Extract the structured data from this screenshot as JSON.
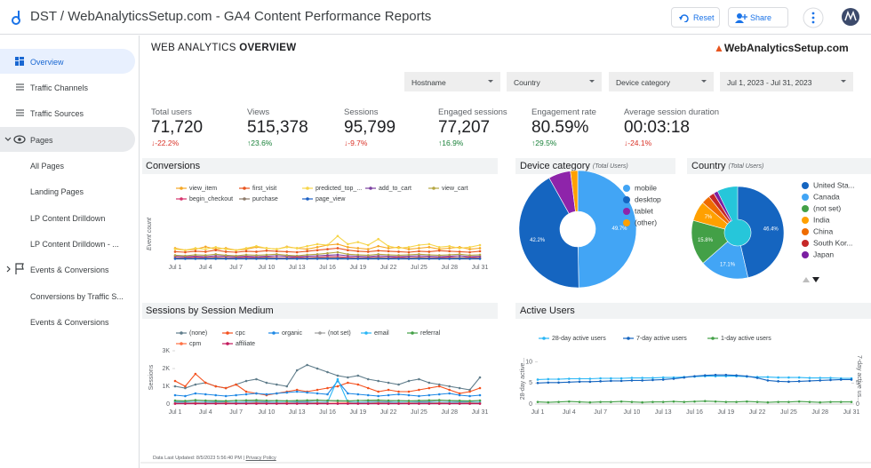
{
  "header": {
    "title": "DST / WebAnalyticsSetup.com - GA4 Content Performance Reports",
    "buttons": [
      "Reset",
      "Share"
    ]
  },
  "sidebar": {
    "items": [
      "Overview",
      "Traffic Channels",
      "Traffic Sources",
      "Pages",
      "All Pages",
      "Landing Pages",
      "LP Content Drilldown",
      "LP Content Drilldown - ...",
      "Events & Conversions",
      "Conversions by Traffic S...",
      "Events & Conversions"
    ]
  },
  "report": {
    "title_light": "WEB ANALYTICS",
    "title_bold": "OVERVIEW",
    "logo": "WebAnalyticsSetup.com",
    "filters": [
      "Hostname",
      "Country",
      "Device category",
      "Jul 1, 2023 - Jul 31, 2023"
    ],
    "footer": {
      "updated": "Data Last Updated: 8/5/2023 5:56:40 PM",
      "privacy": "Privacy Policy"
    }
  },
  "kpis": [
    {
      "label": "Total users",
      "value": "71,720",
      "change": "-22.2%"
    },
    {
      "label": "Views",
      "value": "515,378",
      "change": "23.6%"
    },
    {
      "label": "Sessions",
      "value": "95,799",
      "change": "-9.7%"
    },
    {
      "label": "Engaged sessions",
      "value": "77,207",
      "change": "16.9%"
    },
    {
      "label": "Engagement rate",
      "value": "80.59%",
      "change": "29.5%"
    },
    {
      "label": "Average session duration",
      "value": "00:03:18",
      "change": "-24.1%"
    }
  ],
  "chart_data": [
    {
      "type": "line",
      "title": "Conversions",
      "ylabel": "Event count",
      "ylim": [
        0,
        100
      ],
      "categories": [
        "Jul 1",
        null,
        null,
        "Jul 4",
        null,
        null,
        "Jul 7",
        null,
        null,
        "Jul 10",
        null,
        null,
        "Jul 13",
        null,
        null,
        "Jul 16",
        null,
        null,
        "Jul 19",
        null,
        null,
        "Jul 22",
        null,
        null,
        "Jul 25",
        null,
        null,
        "Jul 28",
        null,
        null,
        "Jul 31"
      ],
      "series": [
        {
          "name": "view_item",
          "color": "#f5a623",
          "values": [
            22,
            18,
            20,
            25,
            20,
            22,
            18,
            20,
            24,
            22,
            20,
            25,
            22,
            20,
            24,
            28,
            30,
            24,
            22,
            20,
            26,
            22,
            24,
            20,
            22,
            24,
            20,
            22,
            24,
            20,
            22
          ]
        },
        {
          "name": "first_visit",
          "color": "#e8541e",
          "values": [
            15,
            14,
            16,
            15,
            18,
            15,
            14,
            16,
            15,
            17,
            16,
            15,
            14,
            16,
            18,
            20,
            22,
            18,
            16,
            15,
            17,
            16,
            15,
            14,
            16,
            15,
            17,
            16,
            15,
            14,
            16
          ]
        },
        {
          "name": "predicted_top_...",
          "color": "#f6d548",
          "values": [
            20,
            18,
            22,
            20,
            24,
            20,
            18,
            22,
            26,
            22,
            20,
            24,
            22,
            26,
            30,
            28,
            46,
            30,
            34,
            28,
            40,
            26,
            22,
            24,
            28,
            30,
            24,
            26,
            22,
            24,
            28
          ]
        },
        {
          "name": "add_to_cart",
          "color": "#7b3fa0",
          "values": [
            6,
            5,
            6,
            5,
            7,
            6,
            5,
            6,
            5,
            6,
            7,
            6,
            5,
            6,
            7,
            8,
            9,
            7,
            6,
            5,
            7,
            6,
            5,
            6,
            7,
            6,
            5,
            6,
            7,
            5,
            6
          ]
        },
        {
          "name": "view_cart",
          "color": "#b5a642",
          "values": [
            8,
            7,
            9,
            8,
            10,
            8,
            7,
            9,
            8,
            9,
            10,
            8,
            7,
            9,
            10,
            12,
            14,
            10,
            9,
            8,
            10,
            9,
            8,
            9,
            10,
            9,
            8,
            9,
            10,
            8,
            9
          ]
        },
        {
          "name": "begin_checkout",
          "color": "#d6336c",
          "values": [
            3,
            3,
            4,
            3,
            4,
            3,
            3,
            4,
            3,
            4,
            3,
            3,
            4,
            3,
            4,
            5,
            5,
            4,
            3,
            3,
            4,
            3,
            4,
            3,
            4,
            3,
            3,
            4,
            3,
            4,
            3
          ]
        },
        {
          "name": "purchase",
          "color": "#8c7b6b",
          "values": [
            2,
            2,
            2,
            2,
            3,
            2,
            2,
            2,
            2,
            3,
            2,
            2,
            2,
            2,
            3,
            3,
            3,
            2,
            2,
            2,
            3,
            2,
            2,
            2,
            3,
            2,
            2,
            2,
            3,
            2,
            2
          ]
        },
        {
          "name": "page_view",
          "color": "#1a5fc4",
          "values": [
            1,
            1,
            1,
            1,
            1,
            1,
            1,
            1,
            1,
            1,
            1,
            1,
            1,
            1,
            1,
            1,
            1,
            1,
            1,
            1,
            1,
            1,
            1,
            1,
            1,
            1,
            1,
            1,
            1,
            1,
            1
          ]
        }
      ]
    },
    {
      "type": "pie",
      "title": "Device category",
      "subtitle": "(Total Users)",
      "categories": [
        "mobile",
        "desktop",
        "tablet",
        "(other)"
      ],
      "values": [
        49.7,
        42.2,
        6.1,
        2
      ],
      "value_labels": [
        "49.7%",
        "42.2%",
        null,
        null
      ],
      "colors": [
        "#42a5f5",
        "#1565c0",
        "#8e24aa",
        "#ffa000"
      ]
    },
    {
      "type": "pie",
      "title": "Country",
      "subtitle": "(Total Users)",
      "categories": [
        "United Sta...",
        "Canada",
        "(not set)",
        "India",
        "China",
        "South Kor...",
        "Japan"
      ],
      "values": [
        46.4,
        17.1,
        15.8,
        7,
        3,
        2,
        1.5
      ],
      "value_labels": [
        "46.4%",
        "17.1%",
        "15.8%",
        "7%",
        null,
        null,
        null
      ],
      "colors": [
        "#1565c0",
        "#42a5f5",
        "#43a047",
        "#ffa000",
        "#ef6c00",
        "#c62828",
        "#7b1fa2"
      ]
    },
    {
      "type": "line",
      "title": "Sessions by Session Medium",
      "ylabel": "Sessions",
      "ylim": [
        0,
        3000
      ],
      "yticks": [
        0,
        {
          "value": 1000,
          "label": "1K"
        },
        {
          "value": 2000,
          "label": "2K"
        },
        {
          "value": 3000,
          "label": "3K"
        }
      ],
      "categories": [
        "Jul 1",
        null,
        null,
        "Jul 4",
        null,
        null,
        "Jul 7",
        null,
        null,
        "Jul 10",
        null,
        null,
        "Jul 13",
        null,
        null,
        "Jul 16",
        null,
        null,
        "Jul 19",
        null,
        null,
        "Jul 22",
        null,
        null,
        "Jul 25",
        null,
        null,
        "Jul 28",
        null,
        null,
        "Jul 31"
      ],
      "series": [
        {
          "name": "(none)",
          "color": "#607d8b",
          "values": [
            1000,
            900,
            1100,
            1200,
            1000,
            900,
            1100,
            1300,
            1400,
            1200,
            1100,
            1000,
            1900,
            2200,
            2000,
            1800,
            1600,
            1500,
            1600,
            1400,
            1300,
            1200,
            1100,
            1300,
            1400,
            1200,
            1100,
            1000,
            900,
            800,
            1500
          ]
        },
        {
          "name": "cpc",
          "color": "#f4511e",
          "values": [
            1300,
            1000,
            1700,
            1200,
            1000,
            900,
            1100,
            700,
            600,
            500,
            600,
            700,
            800,
            700,
            800,
            900,
            1000,
            1200,
            1100,
            900,
            700,
            800,
            700,
            700,
            800,
            900,
            1000,
            800,
            600,
            700,
            900
          ]
        },
        {
          "name": "organic",
          "color": "#1e88e5",
          "values": [
            500,
            450,
            600,
            550,
            500,
            450,
            500,
            550,
            600,
            550,
            600,
            650,
            700,
            650,
            600,
            550,
            1300,
            600,
            550,
            500,
            450,
            500,
            550,
            500,
            450,
            500,
            550,
            600,
            500,
            450,
            500
          ]
        },
        {
          "name": "(not set)",
          "color": "#9e9e9e",
          "values": [
            150,
            150,
            200,
            180,
            150,
            150,
            200,
            180,
            150,
            150,
            200,
            180,
            150,
            150,
            200,
            180,
            150,
            150,
            200,
            180,
            150,
            150,
            200,
            180,
            150,
            150,
            200,
            180,
            150,
            150,
            200
          ]
        },
        {
          "name": "email",
          "color": "#29b6f6",
          "values": [
            100,
            100,
            100,
            100,
            100,
            100,
            100,
            100,
            100,
            100,
            100,
            100,
            100,
            100,
            100,
            100,
            1400,
            100,
            100,
            100,
            100,
            100,
            100,
            100,
            100,
            100,
            100,
            100,
            100,
            100,
            100
          ]
        },
        {
          "name": "referral",
          "color": "#43a047",
          "values": [
            200,
            180,
            220,
            200,
            190,
            180,
            200,
            210,
            220,
            200,
            190,
            180,
            200,
            210,
            220,
            200,
            190,
            180,
            200,
            210,
            220,
            200,
            190,
            180,
            200,
            210,
            220,
            200,
            190,
            180,
            200
          ]
        },
        {
          "name": "cpm",
          "color": "#ff7043",
          "values": [
            50,
            50,
            60,
            50,
            50,
            60,
            50,
            50,
            60,
            50,
            50,
            60,
            50,
            50,
            60,
            50,
            50,
            60,
            50,
            50,
            60,
            50,
            50,
            60,
            50,
            50,
            60,
            50,
            50,
            60,
            50
          ]
        },
        {
          "name": "affiliate",
          "color": "#c2185b",
          "values": [
            20,
            20,
            20,
            20,
            20,
            20,
            20,
            20,
            20,
            20,
            20,
            20,
            20,
            20,
            20,
            20,
            20,
            20,
            20,
            20,
            20,
            20,
            20,
            20,
            20,
            20,
            20,
            20,
            20,
            20,
            20
          ]
        }
      ]
    },
    {
      "type": "line",
      "title": "Active Users",
      "ylabel": "28-day active...",
      "y2label": "7-day active us...",
      "ylim": [
        0,
        12
      ],
      "yticks": [
        0,
        5,
        10
      ],
      "y2lim": [
        0,
        12
      ],
      "y2ticks": [
        0,
        5
      ],
      "categories": [
        "Jul 1",
        null,
        null,
        "Jul 4",
        null,
        null,
        "Jul 7",
        null,
        null,
        "Jul 10",
        null,
        null,
        "Jul 13",
        null,
        null,
        "Jul 16",
        null,
        null,
        "Jul 19",
        null,
        null,
        "Jul 22",
        null,
        null,
        "Jul 25",
        null,
        null,
        "Jul 28",
        null,
        null,
        "Jul 31"
      ],
      "series": [
        {
          "name": "28-day active users",
          "color": "#29b6f6",
          "values": [
            5.8,
            5.9,
            5.9,
            6.0,
            6.0,
            6.0,
            6.1,
            6.1,
            6.1,
            6.2,
            6.2,
            6.2,
            6.3,
            6.3,
            6.4,
            6.5,
            6.6,
            6.6,
            6.6,
            6.6,
            6.5,
            6.4,
            6.4,
            6.3,
            6.3,
            6.3,
            6.2,
            6.2,
            6.2,
            6.1,
            6.1
          ]
        },
        {
          "name": "7-day active users",
          "color": "#1565c0",
          "axis": "y2",
          "values": [
            5.0,
            5.1,
            5.1,
            5.2,
            5.3,
            5.3,
            5.4,
            5.5,
            5.5,
            5.6,
            5.6,
            5.7,
            5.8,
            6.0,
            6.3,
            6.6,
            6.8,
            6.9,
            6.9,
            6.8,
            6.6,
            6.2,
            5.6,
            5.4,
            5.3,
            5.4,
            5.5,
            5.6,
            5.7,
            5.8,
            5.8
          ]
        },
        {
          "name": "1-day active users",
          "color": "#43a047",
          "values": [
            0.5,
            0.4,
            0.5,
            0.6,
            0.5,
            0.4,
            0.5,
            0.5,
            0.6,
            0.5,
            0.4,
            0.5,
            0.5,
            0.6,
            0.5,
            0.6,
            0.7,
            0.6,
            0.5,
            0.5,
            0.6,
            0.5,
            0.4,
            0.5,
            0.5,
            0.6,
            0.5,
            0.4,
            0.5,
            0.5,
            0.5
          ]
        }
      ]
    }
  ]
}
